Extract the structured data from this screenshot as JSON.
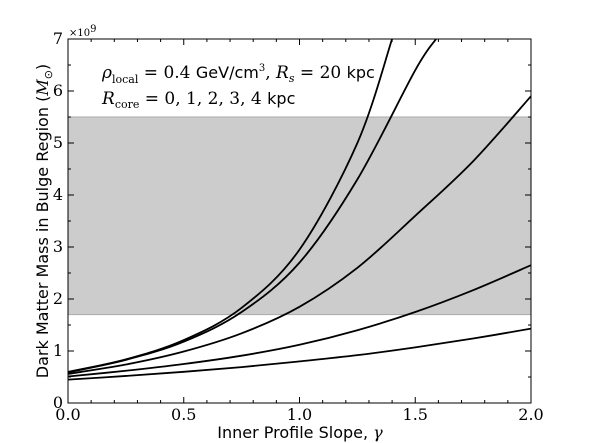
{
  "chart_data": {
    "type": "line",
    "xlabel_text": "Inner Profile Slope,",
    "xlabel_symbol": "γ",
    "ylabel_text": "Dark Matter Mass in Bulge Region",
    "ylabel_unit_open": "(",
    "ylabel_unit_symbol": "M",
    "ylabel_unit_sub": "⊙",
    "ylabel_unit_close": ")",
    "y_multiplier_base": "×10",
    "y_multiplier_exp": "9",
    "xlim": [
      0.0,
      2.0
    ],
    "ylim": [
      0,
      7
    ],
    "xticks": [
      0.0,
      0.5,
      1.0,
      1.5,
      2.0
    ],
    "xtick_labels": [
      "0.0",
      "0.5",
      "1.0",
      "1.5",
      "2.0"
    ],
    "yticks": [
      0,
      1,
      2,
      3,
      4,
      5,
      6,
      7
    ],
    "ytick_labels": [
      "0",
      "1",
      "2",
      "3",
      "4",
      "5",
      "6",
      "7"
    ],
    "shaded_band": {
      "y0": 1.7,
      "y1": 5.5,
      "color": "#cccccc"
    },
    "line_color": "#000000",
    "grid": false,
    "annotation": {
      "line1_rho": "ρ",
      "line1_rho_sub": "local",
      "line1_eq": " = 0.4 ",
      "line1_unit": "GeV/cm",
      "line1_unit_exp": "3",
      "line1_sep": ", ",
      "line1_R": "R",
      "line1_R_sub": "s",
      "line1_eq2": " = 20 ",
      "line1_unit2": "kpc",
      "line2_R": "R",
      "line2_R_sub": "core",
      "line2_eq": " = 0, 1, 2, 3, 4 ",
      "line2_unit": "kpc"
    },
    "series": [
      {
        "x": [
          0.0,
          0.25,
          0.5,
          0.75,
          1.0,
          1.25,
          1.4
        ],
        "y": [
          0.6,
          0.84,
          1.21,
          1.83,
          2.95,
          5.0,
          7.0
        ]
      },
      {
        "x": [
          0.0,
          0.25,
          0.5,
          0.75,
          1.0,
          1.25,
          1.5,
          1.59
        ],
        "y": [
          0.59,
          0.83,
          1.18,
          1.75,
          2.7,
          4.3,
          6.4,
          7.0
        ]
      },
      {
        "x": [
          0.0,
          0.25,
          0.5,
          0.75,
          1.0,
          1.25,
          1.5,
          1.75,
          2.0
        ],
        "y": [
          0.56,
          0.74,
          0.99,
          1.34,
          1.85,
          2.6,
          3.6,
          4.65,
          5.9
        ]
      },
      {
        "x": [
          0.0,
          0.25,
          0.5,
          0.75,
          1.0,
          1.25,
          1.5,
          1.75,
          2.0
        ],
        "y": [
          0.51,
          0.62,
          0.75,
          0.91,
          1.12,
          1.4,
          1.75,
          2.17,
          2.65
        ]
      },
      {
        "x": [
          0.0,
          0.25,
          0.5,
          0.75,
          1.0,
          1.25,
          1.5,
          1.75,
          2.0
        ],
        "y": [
          0.45,
          0.52,
          0.6,
          0.69,
          0.8,
          0.92,
          1.07,
          1.24,
          1.43
        ]
      }
    ]
  }
}
